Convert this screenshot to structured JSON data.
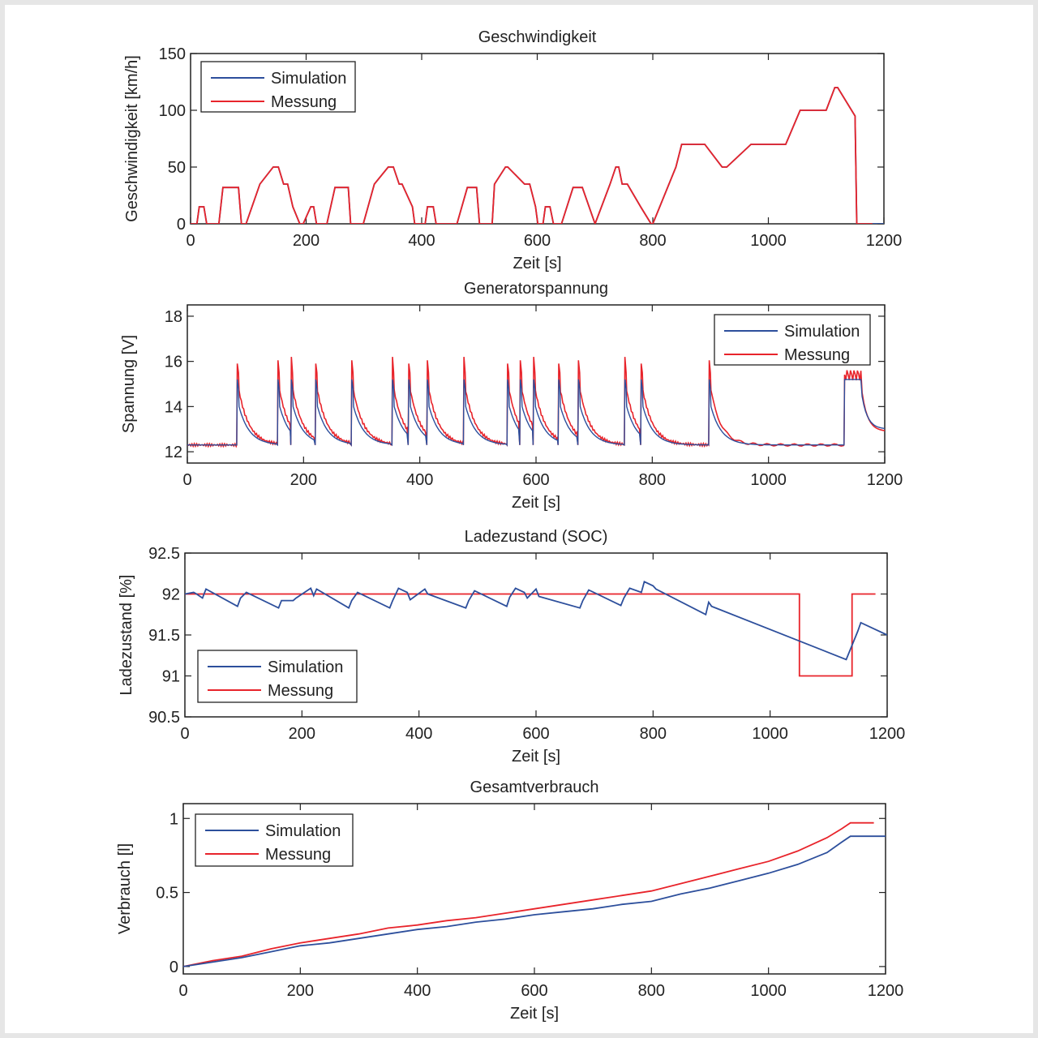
{
  "colors": {
    "simulation": "#2d4f9c",
    "messung": "#e8242b",
    "axis": "#222222"
  },
  "chart_data": [
    {
      "type": "line",
      "title": "Geschwindigkeit",
      "xlabel": "Zeit [s]",
      "ylabel": "Geschwindigkeit [km/h]",
      "xlim": [
        0,
        1200
      ],
      "ylim": [
        0,
        150
      ],
      "xticks": [
        0,
        200,
        400,
        600,
        800,
        1000,
        1200
      ],
      "yticks": [
        0,
        50,
        100,
        150
      ],
      "legend": {
        "position": "top-left",
        "entries": [
          "Simulation",
          "Messung"
        ]
      },
      "series": [
        {
          "name": "Simulation",
          "x": [
            0,
            11,
            15,
            23,
            28,
            49,
            56,
            61,
            83,
            88,
            96,
            120,
            143,
            152,
            161,
            168,
            177,
            189,
            195,
            208,
            213,
            218,
            236,
            250,
            255,
            273,
            277,
            291,
            299,
            318,
            342,
            351,
            361,
            366,
            384,
            388,
            395,
            406,
            410,
            420,
            425,
            435,
            461,
            479,
            489,
            495,
            500,
            508,
            522,
            526,
            545,
            549,
            578,
            587,
            597,
            601,
            610,
            614,
            622,
            628,
            634,
            642,
            662,
            672,
            678,
            700,
            726,
            736,
            741,
            747,
            756,
            779,
            797,
            800,
            840,
            850,
            862,
            867,
            890,
            920,
            925,
            928,
            970,
            975,
            1000,
            1030,
            1055,
            1060,
            1080,
            1100,
            1115,
            1120,
            1150,
            1153,
            1200
          ],
          "y": [
            0,
            0,
            15,
            15,
            0,
            0,
            32,
            32,
            32,
            0,
            0,
            35,
            50,
            50,
            35,
            35,
            15,
            0,
            0,
            15,
            15,
            0,
            0,
            32,
            32,
            32,
            0,
            0,
            0,
            35,
            50,
            50,
            35,
            35,
            15,
            0,
            0,
            0,
            15,
            15,
            0,
            0,
            0,
            32,
            32,
            32,
            0,
            0,
            0,
            35,
            50,
            50,
            35,
            35,
            15,
            0,
            0,
            15,
            15,
            0,
            0,
            0,
            32,
            32,
            32,
            0,
            35,
            50,
            50,
            35,
            35,
            15,
            0,
            0,
            50,
            70,
            70,
            70,
            70,
            50,
            50,
            50,
            70,
            70,
            70,
            70,
            100,
            100,
            100,
            100,
            120,
            120,
            95,
            0,
            0
          ]
        },
        {
          "name": "Messung",
          "x": [
            0,
            11,
            15,
            23,
            28,
            49,
            56,
            61,
            83,
            88,
            96,
            120,
            143,
            152,
            161,
            168,
            177,
            189,
            195,
            208,
            213,
            218,
            236,
            250,
            255,
            273,
            277,
            291,
            299,
            318,
            342,
            351,
            361,
            366,
            384,
            388,
            395,
            406,
            410,
            420,
            425,
            435,
            461,
            479,
            489,
            495,
            500,
            508,
            522,
            526,
            545,
            549,
            578,
            587,
            597,
            601,
            610,
            614,
            622,
            628,
            634,
            642,
            662,
            672,
            678,
            700,
            726,
            736,
            741,
            747,
            756,
            779,
            797,
            800,
            840,
            850,
            862,
            867,
            890,
            920,
            925,
            928,
            970,
            975,
            1000,
            1030,
            1055,
            1060,
            1080,
            1100,
            1115,
            1120,
            1150,
            1153,
            1180
          ],
          "y": [
            0,
            0,
            15,
            15,
            0,
            0,
            32,
            32,
            32,
            0,
            0,
            35,
            50,
            50,
            35,
            35,
            15,
            0,
            0,
            15,
            15,
            0,
            0,
            32,
            32,
            32,
            0,
            0,
            0,
            35,
            50,
            50,
            35,
            35,
            15,
            0,
            0,
            0,
            15,
            15,
            0,
            0,
            0,
            32,
            32,
            32,
            0,
            0,
            0,
            35,
            50,
            50,
            35,
            35,
            15,
            0,
            0,
            15,
            15,
            0,
            0,
            0,
            32,
            32,
            32,
            0,
            35,
            50,
            50,
            35,
            35,
            15,
            0,
            0,
            50,
            70,
            70,
            70,
            70,
            50,
            50,
            50,
            70,
            70,
            70,
            70,
            100,
            100,
            100,
            100,
            120,
            120,
            95,
            0,
            0
          ]
        }
      ]
    },
    {
      "type": "line",
      "title": "Generatorspannung",
      "xlabel": "Zeit [s]",
      "ylabel": "Spannung [V]",
      "xlim": [
        0,
        1200
      ],
      "ylim": [
        11.5,
        18.5
      ],
      "xticks": [
        0,
        200,
        400,
        600,
        800,
        1000,
        1200
      ],
      "yticks": [
        12,
        14,
        16,
        18
      ],
      "legend": {
        "position": "top-right",
        "entries": [
          "Simulation",
          "Messung"
        ]
      },
      "spikes": [
        85,
        155,
        178,
        220,
        282,
        352,
        380,
        412,
        475,
        550,
        572,
        595,
        638,
        672,
        752,
        780,
        897
      ],
      "baseline": 12.3,
      "series": [
        {
          "name": "Simulation",
          "peak": 15.2,
          "decay_tail": 12.3,
          "end_x": 1200,
          "end_value": 13.0,
          "plateau": [
            1130,
            1160,
            15.2
          ]
        },
        {
          "name": "Messung",
          "peak": 15.9,
          "decay_tail": 12.3,
          "end_x": 1200,
          "end_value": 12.9,
          "plateau": [
            1130,
            1160,
            15.4
          ]
        }
      ]
    },
    {
      "type": "line",
      "title": "Ladezustand (SOC)",
      "xlabel": "Zeit [s]",
      "ylabel": "Ladezustand [%]",
      "xlim": [
        0,
        1200
      ],
      "ylim": [
        90.5,
        92.5
      ],
      "xticks": [
        0,
        200,
        400,
        600,
        800,
        1000,
        1200
      ],
      "yticks": [
        "90.5",
        "91",
        "91.5",
        "92",
        "92.5"
      ],
      "ytick_values": [
        90.5,
        91,
        91.5,
        92,
        92.5
      ],
      "legend": {
        "position": "bottom-left",
        "entries": [
          "Simulation",
          "Messung"
        ]
      },
      "series": [
        {
          "name": "Simulation",
          "x": [
            0,
            15,
            20,
            30,
            36,
            90,
            95,
            105,
            160,
            165,
            185,
            190,
            190,
            215,
            220,
            225,
            280,
            285,
            295,
            350,
            355,
            365,
            380,
            385,
            410,
            415,
            480,
            485,
            495,
            550,
            555,
            565,
            580,
            585,
            600,
            605,
            675,
            680,
            690,
            745,
            750,
            760,
            780,
            785,
            800,
            805,
            890,
            895,
            900,
            1130,
            1150,
            1155,
            1200
          ],
          "y": [
            92,
            92.02,
            92,
            91.95,
            92.06,
            91.85,
            91.95,
            92.02,
            91.83,
            91.92,
            91.92,
            91.95,
            91.95,
            92.07,
            91.98,
            92.06,
            91.83,
            91.92,
            92.02,
            91.83,
            91.92,
            92.07,
            92.02,
            91.93,
            92.06,
            92.0,
            91.83,
            91.92,
            92.04,
            91.85,
            91.96,
            92.07,
            92.02,
            91.95,
            92.06,
            91.97,
            91.83,
            91.92,
            92.05,
            91.86,
            91.95,
            92.07,
            92.02,
            92.15,
            92.1,
            92.06,
            91.75,
            91.9,
            91.85,
            91.2,
            91.55,
            91.65,
            91.5
          ]
        },
        {
          "name": "Messung",
          "x": [
            0,
            1050,
            1050,
            1140,
            1140,
            1180
          ],
          "y": [
            92,
            92,
            91,
            91,
            92,
            92
          ]
        }
      ]
    },
    {
      "type": "line",
      "title": "Gesamtverbrauch",
      "xlabel": "Zeit [s]",
      "ylabel": "Verbrauch [l]",
      "xlim": [
        0,
        1200
      ],
      "ylim": [
        -0.05,
        1.1
      ],
      "xticks": [
        0,
        200,
        400,
        600,
        800,
        1000,
        1200
      ],
      "yticks": [
        "0",
        "0.5",
        "1"
      ],
      "ytick_values": [
        0,
        0.5,
        1
      ],
      "legend": {
        "position": "top-left",
        "entries": [
          "Simulation",
          "Messung"
        ]
      },
      "series": [
        {
          "name": "Simulation",
          "x": [
            0,
            50,
            100,
            150,
            200,
            250,
            300,
            350,
            400,
            450,
            500,
            550,
            600,
            650,
            700,
            750,
            800,
            850,
            900,
            950,
            1000,
            1050,
            1100,
            1125,
            1140,
            1200
          ],
          "y": [
            0,
            0.03,
            0.06,
            0.1,
            0.14,
            0.16,
            0.19,
            0.22,
            0.25,
            0.27,
            0.3,
            0.32,
            0.35,
            0.37,
            0.39,
            0.42,
            0.44,
            0.49,
            0.53,
            0.58,
            0.63,
            0.69,
            0.77,
            0.84,
            0.88,
            0.88
          ]
        },
        {
          "name": "Messung",
          "x": [
            0,
            50,
            100,
            150,
            200,
            250,
            300,
            350,
            400,
            450,
            500,
            550,
            600,
            650,
            700,
            750,
            800,
            850,
            900,
            950,
            1000,
            1050,
            1100,
            1125,
            1140,
            1180
          ],
          "y": [
            0,
            0.04,
            0.07,
            0.12,
            0.16,
            0.19,
            0.22,
            0.26,
            0.28,
            0.31,
            0.33,
            0.36,
            0.39,
            0.42,
            0.45,
            0.48,
            0.51,
            0.56,
            0.61,
            0.66,
            0.71,
            0.78,
            0.87,
            0.93,
            0.97,
            0.97
          ]
        }
      ]
    }
  ]
}
